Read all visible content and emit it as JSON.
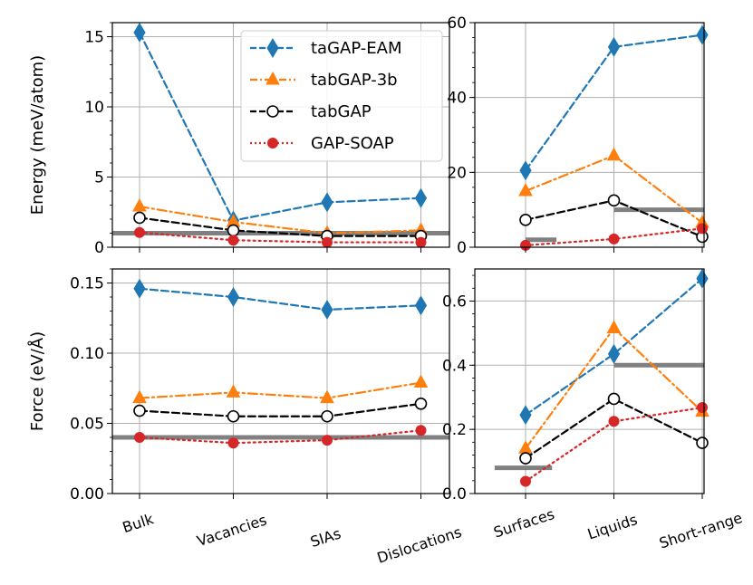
{
  "chart_data": [
    {
      "id": "energy-left",
      "type": "line",
      "ylabel": "Energy (meV/atom)",
      "categories": [
        "Bulk",
        "Vacancies",
        "SIAs",
        "Dislocations"
      ],
      "ylim": [
        0,
        16
      ],
      "yticks": [
        0,
        5,
        10,
        15
      ],
      "grid": true,
      "legend_placement": "top-right",
      "reference_value": 1.0,
      "series": [
        {
          "name": "taGAP-EAM",
          "color": "#1f77b4",
          "dash": "dashed",
          "marker": "diamond",
          "values": [
            15.3,
            1.9,
            3.2,
            3.5
          ]
        },
        {
          "name": "tabGAP-3b",
          "color": "#ff7f0e",
          "dash": "dashdot",
          "marker": "triangle",
          "values": [
            2.9,
            1.8,
            1.0,
            1.2
          ]
        },
        {
          "name": "tabGAP",
          "color": "#000000",
          "dash": "dashed",
          "marker": "open-circle",
          "values": [
            2.1,
            1.2,
            0.8,
            0.8
          ]
        },
        {
          "name": "GAP-SOAP",
          "color": "#d62728",
          "dash": "dotted",
          "marker": "circle",
          "values": [
            1.05,
            0.5,
            0.35,
            0.35
          ]
        }
      ]
    },
    {
      "id": "energy-right",
      "type": "line",
      "categories": [
        "Surfaces",
        "Liquids",
        "Short-range"
      ],
      "ylim": [
        0,
        60
      ],
      "yticks": [
        0,
        20,
        40,
        60
      ],
      "grid": true,
      "reference_segments": [
        {
          "from": 0,
          "to": 0.35,
          "value": 2.0
        },
        {
          "from": 1.0,
          "to": 2.3,
          "value": 10.0
        }
      ],
      "series": [
        {
          "name": "taGAP-EAM",
          "color": "#1f77b4",
          "dash": "dashed",
          "marker": "diamond",
          "values": [
            20.5,
            53.5,
            56.7
          ]
        },
        {
          "name": "tabGAP-3b",
          "color": "#ff7f0e",
          "dash": "dashdot",
          "marker": "triangle",
          "values": [
            15.0,
            24.5,
            6.5
          ]
        },
        {
          "name": "tabGAP",
          "color": "#000000",
          "dash": "dashed",
          "marker": "open-circle",
          "values": [
            7.3,
            12.5,
            2.8
          ]
        },
        {
          "name": "GAP-SOAP",
          "color": "#d62728",
          "dash": "dotted",
          "marker": "circle",
          "values": [
            0.5,
            2.2,
            5.0
          ]
        }
      ]
    },
    {
      "id": "force-left",
      "type": "line",
      "ylabel": "Force (eV/Å)",
      "categories": [
        "Bulk",
        "Vacancies",
        "SIAs",
        "Dislocations"
      ],
      "ylim": [
        0,
        0.16
      ],
      "yticks": [
        "0.00",
        "0.05",
        "0.10",
        "0.15"
      ],
      "grid": true,
      "reference_value": 0.04,
      "series": [
        {
          "name": "taGAP-EAM",
          "color": "#1f77b4",
          "dash": "dashed",
          "marker": "diamond",
          "values": [
            0.146,
            0.14,
            0.131,
            0.134
          ]
        },
        {
          "name": "tabGAP-3b",
          "color": "#ff7f0e",
          "dash": "dashdot",
          "marker": "triangle",
          "values": [
            0.068,
            0.072,
            0.068,
            0.079
          ]
        },
        {
          "name": "tabGAP",
          "color": "#000000",
          "dash": "dashed",
          "marker": "open-circle",
          "values": [
            0.059,
            0.055,
            0.055,
            0.064
          ]
        },
        {
          "name": "GAP-SOAP",
          "color": "#d62728",
          "dash": "dotted",
          "marker": "circle",
          "values": [
            0.04,
            0.036,
            0.038,
            0.045
          ]
        }
      ]
    },
    {
      "id": "force-right",
      "type": "line",
      "categories": [
        "Surfaces",
        "Liquids",
        "Short-range"
      ],
      "ylim": [
        0,
        0.7
      ],
      "yticks": [
        "0.0",
        "0.2",
        "0.4",
        "0.6"
      ],
      "grid": true,
      "reference_segments": [
        {
          "from": -0.35,
          "to": 0.3,
          "value": 0.08
        },
        {
          "from": 1.0,
          "to": 2.3,
          "value": 0.4
        }
      ],
      "series": [
        {
          "name": "taGAP-EAM",
          "color": "#1f77b4",
          "dash": "dashed",
          "marker": "diamond",
          "values": [
            0.245,
            0.435,
            0.67
          ]
        },
        {
          "name": "tabGAP-3b",
          "color": "#ff7f0e",
          "dash": "dashdot",
          "marker": "triangle",
          "values": [
            0.14,
            0.515,
            0.255
          ]
        },
        {
          "name": "tabGAP",
          "color": "#000000",
          "dash": "dashed",
          "marker": "open-circle",
          "values": [
            0.11,
            0.295,
            0.158
          ]
        },
        {
          "name": "GAP-SOAP",
          "color": "#d62728",
          "dash": "dotted",
          "marker": "circle",
          "values": [
            0.038,
            0.225,
            0.268
          ]
        }
      ]
    }
  ],
  "legend": {
    "items": [
      {
        "label": "taGAP-EAM",
        "color": "#1f77b4",
        "dash": "dashed",
        "marker": "diamond"
      },
      {
        "label": "tabGAP-3b",
        "color": "#ff7f0e",
        "dash": "dashdot",
        "marker": "triangle"
      },
      {
        "label": "tabGAP",
        "color": "#000000",
        "dash": "dashed",
        "marker": "open-circle"
      },
      {
        "label": "GAP-SOAP",
        "color": "#d62728",
        "dash": "dotted",
        "marker": "circle"
      }
    ]
  },
  "colors": {
    "reference_line": "#808080",
    "grid": "#b0b0b0"
  }
}
